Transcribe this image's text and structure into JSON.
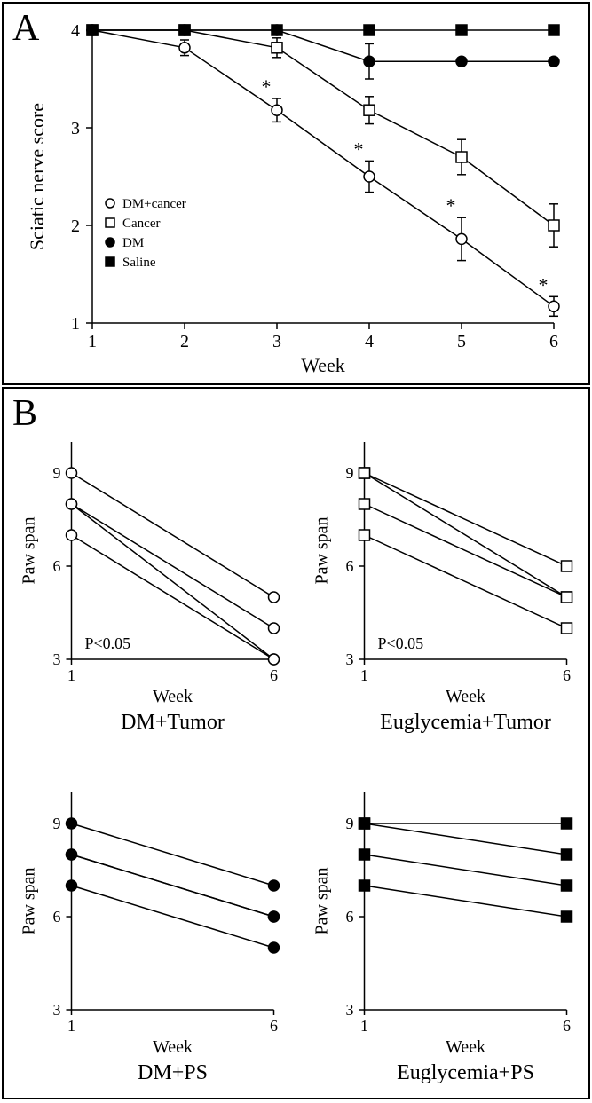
{
  "panelA": {
    "label": "A",
    "type": "line-errorbar",
    "xlabel": "Week",
    "ylabel": "Sciatic nerve score",
    "xlabel_fontsize": 22,
    "ylabel_fontsize": 22,
    "tick_fontsize": 20,
    "xlim": [
      1,
      6
    ],
    "ylim": [
      1,
      4
    ],
    "xticks": [
      1,
      2,
      3,
      4,
      5,
      6
    ],
    "yticks": [
      1,
      2,
      3,
      4
    ],
    "axis_color": "#000000",
    "background_color": "#ffffff",
    "series": [
      {
        "name": "DM+cancer",
        "marker": "circle-open",
        "marker_size": 6,
        "x": [
          1,
          2,
          3,
          4,
          5,
          6
        ],
        "y": [
          4.0,
          3.82,
          3.18,
          2.5,
          1.86,
          1.17
        ],
        "err": [
          0,
          0.08,
          0.12,
          0.16,
          0.22,
          0.1
        ],
        "asterisk_x": [
          3,
          4,
          5,
          6
        ]
      },
      {
        "name": "Cancer",
        "marker": "square-open",
        "marker_size": 6,
        "x": [
          1,
          2,
          3,
          4,
          5,
          6
        ],
        "y": [
          4.0,
          4.0,
          3.82,
          3.18,
          2.7,
          2.0
        ],
        "err": [
          0,
          0,
          0.1,
          0.14,
          0.18,
          0.22
        ]
      },
      {
        "name": "DM",
        "marker": "circle-filled",
        "marker_size": 6,
        "x": [
          1,
          2,
          3,
          4,
          5,
          6
        ],
        "y": [
          4.0,
          4.0,
          4.0,
          3.68,
          3.68,
          3.68
        ],
        "err": [
          0,
          0,
          0,
          0.18,
          0,
          0
        ]
      },
      {
        "name": "Saline",
        "marker": "square-filled",
        "marker_size": 6,
        "x": [
          1,
          2,
          3,
          4,
          5,
          6
        ],
        "y": [
          4.0,
          4.0,
          4.0,
          4.0,
          4.0,
          4.0
        ],
        "err": [
          0,
          0,
          0,
          0,
          0,
          0
        ]
      }
    ],
    "legend": {
      "fontsize": 15,
      "items": [
        {
          "label": "DM+cancer",
          "marker": "circle-open"
        },
        {
          "label": "Cancer",
          "marker": "square-open"
        },
        {
          "label": "DM",
          "marker": "circle-filled"
        },
        {
          "label": "Saline",
          "marker": "square-filled"
        }
      ]
    }
  },
  "panelB": {
    "label": "B",
    "type": "paired-line-grid",
    "xlabel": "Week",
    "ylabel": "Paw span",
    "xlabel_fontsize": 20,
    "ylabel_fontsize": 20,
    "sub_title_fontsize": 24,
    "tick_fontsize": 18,
    "xlim": [
      1,
      6
    ],
    "xticks": [
      1,
      6
    ],
    "ylim": [
      3,
      10
    ],
    "yticks": [
      3,
      6,
      9
    ],
    "subplots": [
      {
        "title": "DM+Tumor",
        "marker": "circle-open",
        "pairs": [
          [
            9,
            5
          ],
          [
            8,
            4
          ],
          [
            8,
            3
          ],
          [
            7,
            3
          ]
        ],
        "annotation": "P<0.05"
      },
      {
        "title": "Euglycemia+Tumor",
        "marker": "square-open",
        "pairs": [
          [
            9,
            6
          ],
          [
            9,
            5
          ],
          [
            8,
            5
          ],
          [
            7,
            4
          ]
        ],
        "annotation": "P<0.05"
      },
      {
        "title": "DM+PS",
        "marker": "circle-filled",
        "pairs": [
          [
            9,
            7
          ],
          [
            8,
            6
          ],
          [
            8,
            6
          ],
          [
            7,
            5
          ]
        ],
        "annotation": ""
      },
      {
        "title": "Euglycemia+PS",
        "marker": "square-filled",
        "pairs": [
          [
            9,
            9
          ],
          [
            9,
            8
          ],
          [
            8,
            7
          ],
          [
            7,
            6
          ]
        ],
        "annotation": ""
      }
    ]
  }
}
